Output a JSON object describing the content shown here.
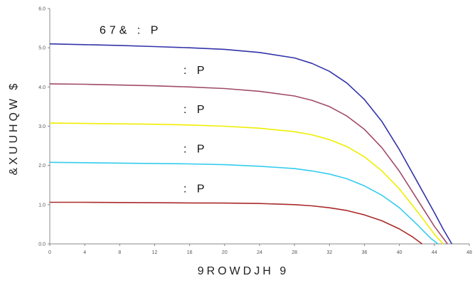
{
  "chart_data": {
    "type": "line",
    "xlabel": "9ROWDJH  9",
    "ylabel": "&XUUHQW  $",
    "xlim": [
      0,
      48
    ],
    "ylim": [
      0,
      6
    ],
    "x_ticks": [
      "0",
      "4",
      "8",
      "12",
      "16",
      "20",
      "24",
      "28",
      "32",
      "36",
      "40",
      "44",
      "48"
    ],
    "y_ticks": [
      "0.0",
      "1.0",
      "2.0",
      "3.0",
      "4.0",
      "5.0",
      "6.0"
    ],
    "grid": false,
    "series": [
      {
        "name": "67&        :  P",
        "color": "#3333aa",
        "x": [
          0,
          4,
          8,
          12,
          16,
          20,
          24,
          28,
          30,
          32,
          34,
          36,
          38,
          40,
          42,
          44,
          45,
          46
        ],
        "y": [
          5.1,
          5.08,
          5.06,
          5.03,
          5.0,
          4.96,
          4.88,
          4.74,
          4.6,
          4.4,
          4.1,
          3.68,
          3.12,
          2.4,
          1.6,
          0.8,
          0.38,
          0.0
        ]
      },
      {
        "name": ":  P",
        "color": "#a04a6a",
        "x": [
          0,
          4,
          8,
          12,
          16,
          20,
          24,
          28,
          30,
          32,
          34,
          36,
          38,
          40,
          42,
          44,
          45.5
        ],
        "y": [
          4.08,
          4.07,
          4.05,
          4.03,
          4.0,
          3.96,
          3.89,
          3.77,
          3.66,
          3.5,
          3.26,
          2.92,
          2.45,
          1.85,
          1.15,
          0.45,
          0.0
        ]
      },
      {
        "name": ":  P",
        "color": "#eeee00",
        "x": [
          0,
          4,
          8,
          12,
          16,
          20,
          24,
          28,
          30,
          32,
          34,
          36,
          38,
          40,
          42,
          44,
          45
        ],
        "y": [
          3.08,
          3.07,
          3.06,
          3.05,
          3.03,
          3.0,
          2.95,
          2.86,
          2.78,
          2.66,
          2.48,
          2.22,
          1.86,
          1.4,
          0.84,
          0.25,
          0.0
        ]
      },
      {
        "name": ":  P",
        "color": "#33ccee",
        "x": [
          0,
          4,
          8,
          12,
          16,
          20,
          24,
          28,
          30,
          32,
          34,
          36,
          38,
          40,
          42,
          43.5,
          44.4
        ],
        "y": [
          2.08,
          2.07,
          2.06,
          2.05,
          2.04,
          2.02,
          1.98,
          1.92,
          1.86,
          1.78,
          1.66,
          1.48,
          1.24,
          0.92,
          0.5,
          0.16,
          0.0
        ]
      },
      {
        "name": ":  P",
        "color": "#aa2a2a",
        "x": [
          0,
          4,
          8,
          12,
          16,
          20,
          24,
          28,
          30,
          32,
          34,
          36,
          38,
          40,
          41.5,
          42.6
        ],
        "y": [
          1.06,
          1.06,
          1.055,
          1.05,
          1.045,
          1.04,
          1.03,
          1.0,
          0.97,
          0.92,
          0.85,
          0.74,
          0.59,
          0.38,
          0.18,
          0.0
        ]
      }
    ]
  }
}
